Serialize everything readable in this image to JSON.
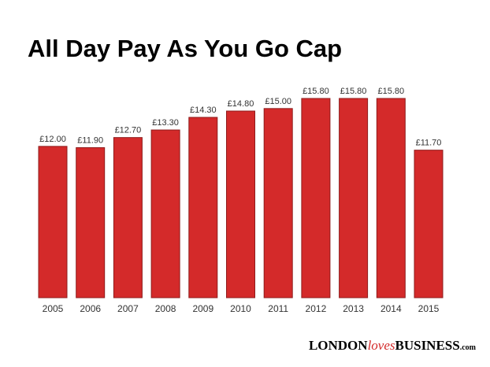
{
  "chart_data": {
    "type": "bar",
    "title": "All Day Pay As You Go Cap",
    "categories": [
      "2005",
      "2006",
      "2007",
      "2008",
      "2009",
      "2010",
      "2011",
      "2012",
      "2013",
      "2014",
      "2015"
    ],
    "values": [
      12.0,
      11.9,
      12.7,
      13.3,
      14.3,
      14.8,
      15.0,
      15.8,
      15.8,
      15.8,
      11.7
    ],
    "value_labels": [
      "£12.00",
      "£11.90",
      "£12.70",
      "£13.30",
      "£14.30",
      "£14.80",
      "£15.00",
      "£15.80",
      "£15.80",
      "£15.80",
      "£11.70"
    ],
    "color": "#d42a2a",
    "source": {
      "part1": "LONDON",
      "part2": "loves",
      "part3": "BUSINESS",
      "part4": ".com"
    }
  }
}
